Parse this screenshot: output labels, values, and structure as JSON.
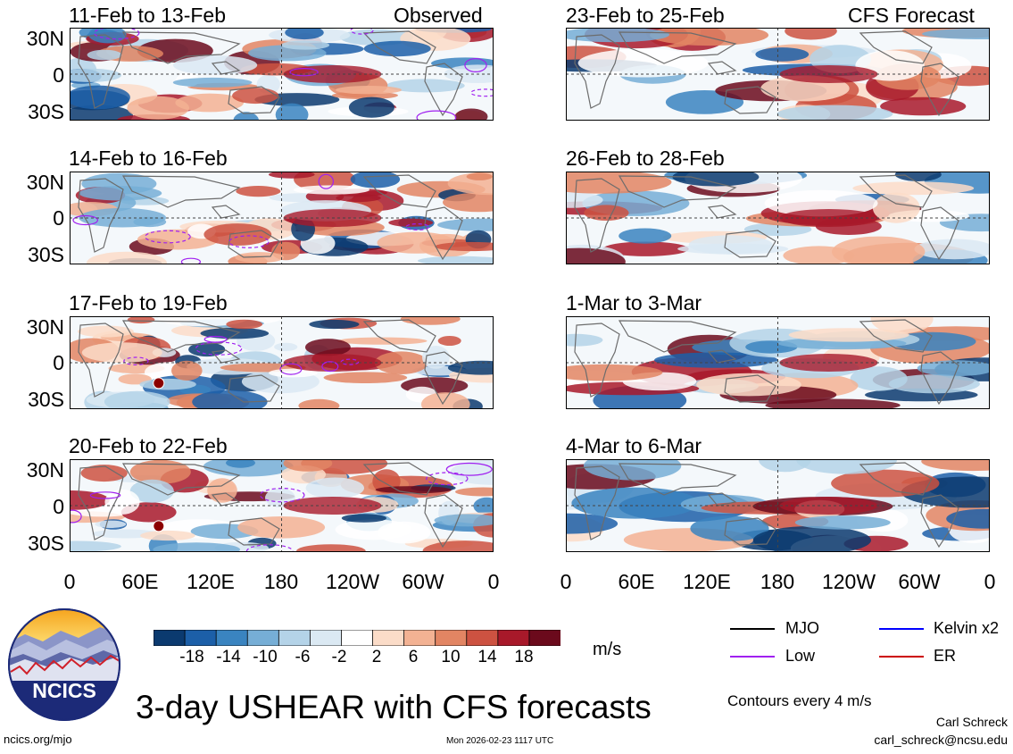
{
  "title": "3-day USHEAR with CFS forecasts",
  "column_headers": {
    "observed": "Observed",
    "forecast": "CFS Forecast"
  },
  "panels_left": [
    {
      "date_range": "11-Feb to 13-Feb"
    },
    {
      "date_range": "14-Feb to 16-Feb"
    },
    {
      "date_range": "17-Feb to 19-Feb"
    },
    {
      "date_range": "20-Feb to 22-Feb"
    }
  ],
  "panels_right": [
    {
      "date_range": "23-Feb to 25-Feb"
    },
    {
      "date_range": "26-Feb to 28-Feb"
    },
    {
      "date_range": "1-Mar to 3-Mar"
    },
    {
      "date_range": "4-Mar to 6-Mar"
    }
  ],
  "lat_labels": [
    "30N",
    "0",
    "30S"
  ],
  "lon_labels": [
    "0",
    "60E",
    "120E",
    "180",
    "120W",
    "60W",
    "0"
  ],
  "colorbar": {
    "unit": "m/s",
    "tick_labels": [
      "-18",
      "-14",
      "-10",
      "-6",
      "-2",
      "2",
      "6",
      "10",
      "14",
      "18"
    ],
    "colors": [
      "#0b3a6f",
      "#1c5fa8",
      "#3a84c0",
      "#76aed6",
      "#b4d3e8",
      "#dbe9f3",
      "#ffffff",
      "#fbdcc8",
      "#f3b293",
      "#e28563",
      "#cd5241",
      "#a8192a",
      "#6b0a1c"
    ]
  },
  "legend": [
    {
      "label": "MJO",
      "color": "#000000"
    },
    {
      "label": "Kelvin x2",
      "color": "#0000ff"
    },
    {
      "label": "Low",
      "color": "#a020f0"
    },
    {
      "label": "ER",
      "color": "#cc0000"
    }
  ],
  "contour_note": "Contours every 4 m/s",
  "logo_text": "NCICS",
  "website": "ncics.org/mjo",
  "timestamp": "Mon 2026-02-23 1117 UTC",
  "author": "Carl Schreck",
  "email": "carl_schreck@ncsu.edu"
}
